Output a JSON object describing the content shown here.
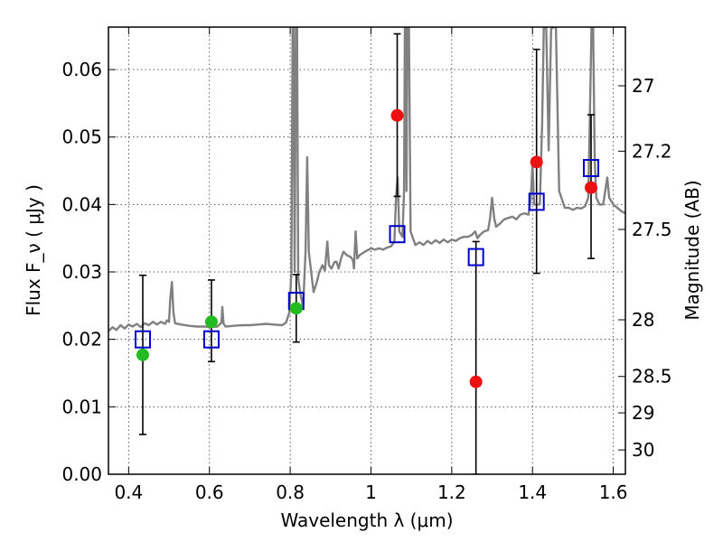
{
  "chart_data": {
    "type": "scatter",
    "xlabel": "Wavelength  λ (μm)",
    "ylabel": "Flux  F_ν  ( μJy )",
    "ylabel_right": "Magnitude (AB)",
    "xlim": [
      0.35,
      1.63
    ],
    "ylim": [
      0.0,
      0.0663
    ],
    "grid": true,
    "x_ticks": [
      0.4,
      0.6,
      0.8,
      1.0,
      1.2,
      1.4,
      1.6
    ],
    "x_tick_labels": [
      "0.4",
      "0.6",
      "0.8",
      "1",
      "1.2",
      "1.4",
      "1.6"
    ],
    "y_ticks": [
      0.0,
      0.01,
      0.02,
      0.03,
      0.04,
      0.05,
      0.06
    ],
    "y_tick_labels": [
      "0.00",
      "0.01",
      "0.02",
      "0.03",
      "0.04",
      "0.05",
      "0.06"
    ],
    "right_ticks": [
      {
        "label": "27",
        "flux": 0.0576
      },
      {
        "label": "27.2",
        "flux": 0.0479
      },
      {
        "label": "27.5",
        "flux": 0.0363
      },
      {
        "label": "28",
        "flux": 0.0229
      },
      {
        "label": "28.5",
        "flux": 0.0145
      },
      {
        "label": "29",
        "flux": 0.0091
      },
      {
        "label": "30",
        "flux": 0.0036
      }
    ],
    "series": [
      {
        "color": "#808080",
        "style": "line",
        "points": [
          [
            0.35,
            0.0212
          ],
          [
            0.36,
            0.0218
          ],
          [
            0.37,
            0.0214
          ],
          [
            0.38,
            0.0221
          ],
          [
            0.39,
            0.0216
          ],
          [
            0.4,
            0.0222
          ],
          [
            0.41,
            0.0219
          ],
          [
            0.42,
            0.0223
          ],
          [
            0.43,
            0.0218
          ],
          [
            0.44,
            0.0224
          ],
          [
            0.45,
            0.0221
          ],
          [
            0.46,
            0.0226
          ],
          [
            0.47,
            0.0222
          ],
          [
            0.48,
            0.0226
          ],
          [
            0.49,
            0.0223
          ],
          [
            0.495,
            0.0228
          ],
          [
            0.5,
            0.0226
          ],
          [
            0.503,
            0.026
          ],
          [
            0.507,
            0.0285
          ],
          [
            0.511,
            0.024
          ],
          [
            0.515,
            0.0224
          ],
          [
            0.53,
            0.0222
          ],
          [
            0.55,
            0.022
          ],
          [
            0.57,
            0.0219
          ],
          [
            0.59,
            0.0219
          ],
          [
            0.6,
            0.0218
          ],
          [
            0.62,
            0.0219
          ],
          [
            0.63,
            0.0225
          ],
          [
            0.632,
            0.0248
          ],
          [
            0.635,
            0.0223
          ],
          [
            0.64,
            0.0219
          ],
          [
            0.66,
            0.022
          ],
          [
            0.68,
            0.0221
          ],
          [
            0.7,
            0.0221
          ],
          [
            0.72,
            0.0222
          ],
          [
            0.74,
            0.0223
          ],
          [
            0.76,
            0.0222
          ],
          [
            0.78,
            0.0221
          ],
          [
            0.79,
            0.0225
          ],
          [
            0.798,
            0.024
          ],
          [
            0.803,
            0.03
          ],
          [
            0.806,
            0.0663
          ],
          [
            0.808,
            0.0663
          ],
          [
            0.811,
            0.03
          ],
          [
            0.814,
            0.0663
          ],
          [
            0.817,
            0.0663
          ],
          [
            0.82,
            0.029
          ],
          [
            0.826,
            0.0265
          ],
          [
            0.832,
            0.0248
          ],
          [
            0.838,
            0.033
          ],
          [
            0.842,
            0.047
          ],
          [
            0.846,
            0.033
          ],
          [
            0.852,
            0.03
          ],
          [
            0.858,
            0.027
          ],
          [
            0.866,
            0.0285
          ],
          [
            0.872,
            0.03
          ],
          [
            0.88,
            0.031
          ],
          [
            0.886,
            0.0302
          ],
          [
            0.892,
            0.0345
          ],
          [
            0.896,
            0.031
          ],
          [
            0.902,
            0.0305
          ],
          [
            0.91,
            0.0315
          ],
          [
            0.915,
            0.0315
          ],
          [
            0.92,
            0.0305
          ],
          [
            0.926,
            0.032
          ],
          [
            0.932,
            0.033
          ],
          [
            0.94,
            0.0325
          ],
          [
            0.95,
            0.0322
          ],
          [
            0.955,
            0.0318
          ],
          [
            0.958,
            0.0305
          ],
          [
            0.962,
            0.036
          ],
          [
            0.966,
            0.032
          ],
          [
            0.972,
            0.0325
          ],
          [
            0.985,
            0.033
          ],
          [
            1.0,
            0.0335
          ],
          [
            1.01,
            0.0333
          ],
          [
            1.02,
            0.0335
          ],
          [
            1.03,
            0.0333
          ],
          [
            1.04,
            0.0336
          ],
          [
            1.05,
            0.0338
          ],
          [
            1.058,
            0.0345
          ],
          [
            1.062,
            0.041
          ],
          [
            1.066,
            0.044
          ],
          [
            1.07,
            0.036
          ],
          [
            1.078,
            0.0352
          ],
          [
            1.082,
            0.042
          ],
          [
            1.084,
            0.0663
          ],
          [
            1.086,
            0.0663
          ],
          [
            1.088,
            0.042
          ],
          [
            1.09,
            0.0663
          ],
          [
            1.094,
            0.0663
          ],
          [
            1.098,
            0.036
          ],
          [
            1.11,
            0.034
          ],
          [
            1.12,
            0.0344
          ],
          [
            1.13,
            0.034
          ],
          [
            1.14,
            0.0346
          ],
          [
            1.15,
            0.0342
          ],
          [
            1.16,
            0.0347
          ],
          [
            1.17,
            0.0343
          ],
          [
            1.18,
            0.0348
          ],
          [
            1.19,
            0.0344
          ],
          [
            1.2,
            0.0348
          ],
          [
            1.21,
            0.0346
          ],
          [
            1.22,
            0.035
          ],
          [
            1.23,
            0.0352
          ],
          [
            1.24,
            0.0352
          ],
          [
            1.25,
            0.0355
          ],
          [
            1.258,
            0.036
          ],
          [
            1.264,
            0.035
          ],
          [
            1.27,
            0.0355
          ],
          [
            1.28,
            0.036
          ],
          [
            1.29,
            0.0362
          ],
          [
            1.295,
            0.038
          ],
          [
            1.3,
            0.041
          ],
          [
            1.305,
            0.038
          ],
          [
            1.31,
            0.0367
          ],
          [
            1.32,
            0.0372
          ],
          [
            1.33,
            0.0378
          ],
          [
            1.34,
            0.038
          ],
          [
            1.35,
            0.0382
          ],
          [
            1.36,
            0.0378
          ],
          [
            1.37,
            0.0385
          ],
          [
            1.38,
            0.0387
          ],
          [
            1.39,
            0.0385
          ],
          [
            1.396,
            0.041
          ],
          [
            1.4,
            0.046
          ],
          [
            1.404,
            0.04
          ],
          [
            1.41,
            0.04
          ],
          [
            1.418,
            0.04
          ],
          [
            1.424,
            0.052
          ],
          [
            1.428,
            0.0663
          ],
          [
            1.434,
            0.0663
          ],
          [
            1.44,
            0.048
          ],
          [
            1.446,
            0.066
          ],
          [
            1.452,
            0.0663
          ],
          [
            1.458,
            0.0663
          ],
          [
            1.466,
            0.042
          ],
          [
            1.48,
            0.0395
          ],
          [
            1.49,
            0.0395
          ],
          [
            1.5,
            0.0392
          ],
          [
            1.51,
            0.0395
          ],
          [
            1.52,
            0.0394
          ],
          [
            1.53,
            0.0397
          ],
          [
            1.538,
            0.041
          ],
          [
            1.542,
            0.053
          ],
          [
            1.546,
            0.0663
          ],
          [
            1.55,
            0.0663
          ],
          [
            1.554,
            0.047
          ],
          [
            1.558,
            0.041
          ],
          [
            1.566,
            0.04
          ],
          [
            1.575,
            0.04
          ],
          [
            1.58,
            0.042
          ],
          [
            1.585,
            0.044
          ],
          [
            1.59,
            0.041
          ],
          [
            1.6,
            0.04
          ],
          [
            1.61,
            0.0395
          ],
          [
            1.62,
            0.039
          ],
          [
            1.63,
            0.0387
          ]
        ]
      },
      {
        "color": "#0000cc",
        "marker": "open-square",
        "x": [
          0.435,
          0.605,
          0.815,
          1.065,
          1.26,
          1.41,
          1.545
        ],
        "y": [
          0.02,
          0.02,
          0.0257,
          0.0356,
          0.0322,
          0.0404,
          0.0454
        ]
      },
      {
        "color": "#22bb22",
        "marker": "filled-circle",
        "x": [
          0.435,
          0.605,
          0.815
        ],
        "y": [
          0.0177,
          0.0226,
          0.0246
        ],
        "yerr_low": [
          0.0059,
          0.0167,
          0.0196
        ],
        "yerr_high": [
          0.0295,
          0.0288,
          0.0296
        ]
      },
      {
        "color": "#ee1111",
        "marker": "filled-circle",
        "x": [
          1.065,
          1.26,
          1.41,
          1.545
        ],
        "y": [
          0.0532,
          0.0137,
          0.0463,
          0.0425
        ],
        "yerr_low": [
          0.0412,
          0.0,
          0.0298,
          0.032
        ],
        "yerr_high": [
          0.0653,
          0.0345,
          0.063,
          0.0533
        ]
      }
    ]
  }
}
